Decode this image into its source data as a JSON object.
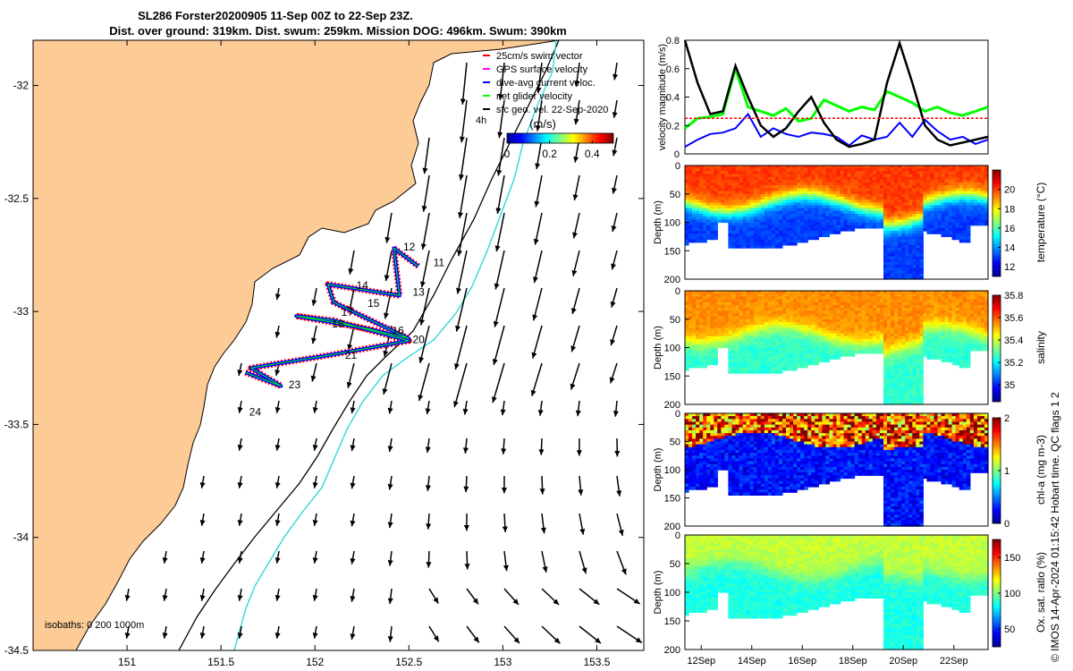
{
  "figure": {
    "title_line1": "SL286 Forster20200905 11-Sep 00Z to 22-Sep 23Z.",
    "title_line2": "Dist. over ground: 319km. Dist. swum: 259km. Mission DOG: 496km. Swum: 390km",
    "credit": "© IMOS 14-Apr-2024 01:15:42 Hobart time. QC flags 1  2"
  },
  "chart_data": [
    {
      "type": "map",
      "xlim": [
        150.5,
        153.75
      ],
      "ylim": [
        -34.5,
        -31.8
      ],
      "x_ticks": [
        "151",
        "151.5",
        "152",
        "152.5",
        "153",
        "153.5"
      ],
      "y_ticks": [
        "-32",
        "-32.5",
        "-33",
        "-33.5",
        "-34",
        "-34.5"
      ],
      "legend": [
        {
          "label": "25cm/s swim vector",
          "color": "#ff0000"
        },
        {
          "label": "GPS surface velocity",
          "color": "#ff00ff"
        },
        {
          "label": "dive-avg current veloc.",
          "color": "#0000ff"
        },
        {
          "label": "net glider velocity",
          "color": "#00ff00"
        },
        {
          "label": "sfc geo. vel. 22-Sep-2020",
          "color": "#000000"
        }
      ],
      "legend_extra": "4h",
      "colorbar": {
        "label": "(m/s)",
        "ticks": [
          "0",
          "0.2",
          "0.4"
        ],
        "range": [
          0,
          0.5
        ]
      },
      "isobaths_label": "isobaths: 0   200  1000m",
      "track_day_labels": [
        {
          "label": "11",
          "lon": 152.63,
          "lat": -32.8
        },
        {
          "label": "12",
          "lon": 152.47,
          "lat": -32.73
        },
        {
          "label": "13",
          "lon": 152.52,
          "lat": -32.93
        },
        {
          "label": "14",
          "lon": 152.22,
          "lat": -32.9
        },
        {
          "label": "15",
          "lon": 152.28,
          "lat": -32.98
        },
        {
          "label": "16",
          "lon": 152.41,
          "lat": -33.1
        },
        {
          "label": "17",
          "lon": 152.14,
          "lat": -33.02
        },
        {
          "label": "18",
          "lon": 152.09,
          "lat": -33.07
        },
        {
          "label": "20",
          "lon": 152.52,
          "lat": -33.14
        },
        {
          "label": "21",
          "lon": 152.16,
          "lat": -33.21
        },
        {
          "label": "23",
          "lon": 151.86,
          "lat": -33.34
        },
        {
          "label": "24",
          "lon": 151.65,
          "lat": -33.46
        }
      ],
      "track": [
        [
          151.63,
          -33.27
        ],
        [
          151.82,
          -33.33
        ],
        [
          151.66,
          -33.25
        ],
        [
          152.1,
          -33.19
        ],
        [
          152.5,
          -33.13
        ],
        [
          152.1,
          -33.04
        ],
        [
          151.9,
          -33.02
        ],
        [
          152.3,
          -33.08
        ],
        [
          152.5,
          -33.12
        ],
        [
          152.1,
          -32.96
        ],
        [
          152.07,
          -32.88
        ],
        [
          152.45,
          -32.93
        ],
        [
          152.42,
          -32.72
        ],
        [
          152.55,
          -32.8
        ]
      ]
    },
    {
      "type": "line",
      "ylabel": "velocity magnitude (m/s)",
      "ylim": [
        0,
        0.8
      ],
      "y_ticks": [
        "0",
        "0.2",
        "0.4",
        "0.6",
        "0.8"
      ],
      "x": [
        0,
        0.5,
        1,
        1.5,
        2,
        2.5,
        3,
        3.5,
        4,
        4.5,
        5,
        5.5,
        6,
        6.5,
        7,
        7.5,
        8,
        8.5,
        9,
        9.5,
        10,
        10.5,
        11,
        11.5,
        12
      ],
      "series": [
        {
          "color": "#00ff00",
          "values": [
            0.18,
            0.25,
            0.26,
            0.28,
            0.6,
            0.33,
            0.3,
            0.27,
            0.32,
            0.23,
            0.25,
            0.38,
            0.34,
            0.3,
            0.33,
            0.31,
            0.44,
            0.4,
            0.36,
            0.3,
            0.33,
            0.29,
            0.27,
            0.3,
            0.33
          ]
        },
        {
          "color": "#0000ff",
          "values": [
            0.05,
            0.1,
            0.14,
            0.15,
            0.18,
            0.28,
            0.12,
            0.18,
            0.14,
            0.12,
            0.15,
            0.14,
            0.12,
            0.06,
            0.13,
            0.1,
            0.12,
            0.22,
            0.12,
            0.24,
            0.16,
            0.1,
            0.12,
            0.07,
            0.1
          ]
        },
        {
          "color": "#000000",
          "values": [
            0.8,
            0.5,
            0.28,
            0.3,
            0.62,
            0.4,
            0.2,
            0.12,
            0.18,
            0.3,
            0.4,
            0.22,
            0.1,
            0.05,
            0.07,
            0.1,
            0.5,
            0.78,
            0.5,
            0.2,
            0.1,
            0.06,
            0.08,
            0.1,
            0.12
          ]
        },
        {
          "color": "#ff0000",
          "values": [
            0.25,
            0.25,
            0.25,
            0.25,
            0.25,
            0.25,
            0.25,
            0.25,
            0.25,
            0.25,
            0.25,
            0.25,
            0.25,
            0.25,
            0.25,
            0.25,
            0.25,
            0.25,
            0.25,
            0.25,
            0.25,
            0.25,
            0.25,
            0.25,
            0.25
          ]
        }
      ]
    },
    {
      "type": "heatmap",
      "ylabel": "Depth (m)",
      "ylim": [
        0,
        200
      ],
      "y_ticks": [
        "0",
        "50",
        "100",
        "150",
        "200"
      ],
      "colorbar_label": "temperature (°C)",
      "colorbar_ticks": [
        "12",
        "14",
        "16",
        "18",
        "20"
      ],
      "range": [
        11,
        22
      ],
      "surface": 20,
      "bottom": 13,
      "mixed_layer_depth": 65
    },
    {
      "type": "heatmap",
      "ylabel": "Depth (m)",
      "ylim": [
        0,
        200
      ],
      "y_ticks": [
        "0",
        "50",
        "100",
        "150",
        "200"
      ],
      "colorbar_label": "salinity",
      "colorbar_ticks": [
        "35",
        "35.2",
        "35.4",
        "35.6",
        "35.8"
      ],
      "range": [
        34.85,
        35.8
      ],
      "surface": 35.55,
      "bottom": 35.25,
      "mixed_layer_depth": 75
    },
    {
      "type": "heatmap",
      "ylabel": "Depth (m)",
      "ylim": [
        0,
        200
      ],
      "y_ticks": [
        "0",
        "50",
        "100",
        "150",
        "200"
      ],
      "colorbar_label": "chl-a (mg m-3)",
      "colorbar_ticks": [
        "0",
        "1",
        "2"
      ],
      "range": [
        0,
        2
      ],
      "surface": 1.4,
      "bottom": 0.15,
      "mixed_layer_depth": 45
    },
    {
      "type": "heatmap",
      "ylabel": "Depth (m)",
      "ylim": [
        0,
        200
      ],
      "y_ticks": [
        "0",
        "50",
        "100",
        "150",
        "200"
      ],
      "colorbar_label": "Ox. sat. ratio (%)",
      "colorbar_ticks": [
        "50",
        "100",
        "150"
      ],
      "range": [
        25,
        175
      ],
      "surface": 110,
      "bottom": 85,
      "mixed_layer_depth": 60,
      "x_ticks": [
        "12Sep",
        "14Sep",
        "16Sep",
        "18Sep",
        "20Sep",
        "22Sep"
      ]
    }
  ]
}
